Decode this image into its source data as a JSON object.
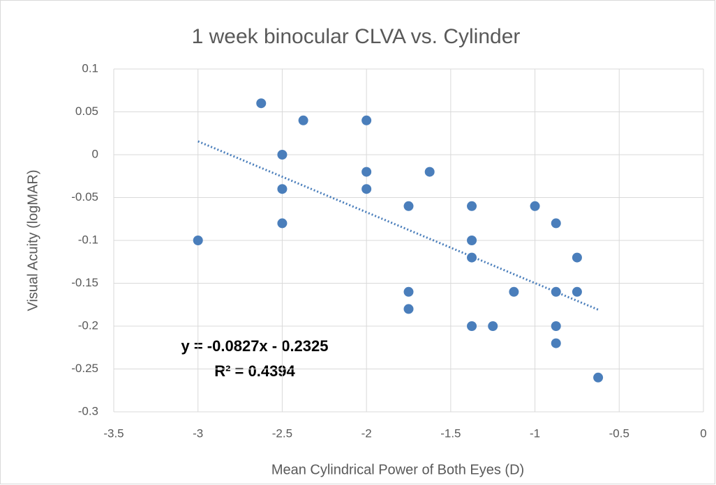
{
  "chart_data": {
    "type": "scatter",
    "title": "1 week binocular CLVA vs. Cylinder",
    "x_label": "Mean Cylindrical Power of Both Eyes (D)",
    "y_label": "Visual Acuity (logMAR)",
    "annotations": [
      "y = -0.0827x - 0.2325",
      "R² = 0.4394"
    ],
    "color": "#4a7ebb",
    "x": [
      -2.625,
      -2.375,
      -2,
      -2.5,
      -2,
      -1.625,
      -2.5,
      -2,
      -1.75,
      -1.375,
      -1,
      -2.5,
      -0.875,
      -3,
      -1.375,
      -1.375,
      -0.75,
      -1.75,
      -1.125,
      -0.875,
      -0.75,
      -1.75,
      -1.375,
      -1.25,
      -0.875,
      -0.875,
      -0.625
    ],
    "values": [
      0.06,
      0.04,
      0.04,
      0,
      -0.02,
      -0.02,
      -0.04,
      -0.04,
      -0.06,
      -0.06,
      -0.06,
      -0.08,
      -0.08,
      -0.1,
      -0.1,
      -0.12,
      -0.12,
      -0.16,
      -0.16,
      -0.16,
      -0.16,
      -0.18,
      -0.2,
      -0.2,
      -0.2,
      -0.22,
      -0.26
    ],
    "trendline": {
      "x": [
        -3,
        -0.625
      ],
      "values": [
        0.0156,
        -0.1808
      ]
    },
    "xlim": [
      -3.5,
      0
    ],
    "xticks": [
      -3.5,
      -3,
      -2.5,
      -2,
      -1.5,
      -1,
      -0.5,
      0
    ],
    "ylim": [
      -0.3,
      0.1
    ],
    "yticks": [
      0.1,
      0.05,
      0,
      -0.05,
      -0.1,
      -0.15,
      -0.2,
      -0.25,
      -0.3
    ],
    "grid": true
  }
}
